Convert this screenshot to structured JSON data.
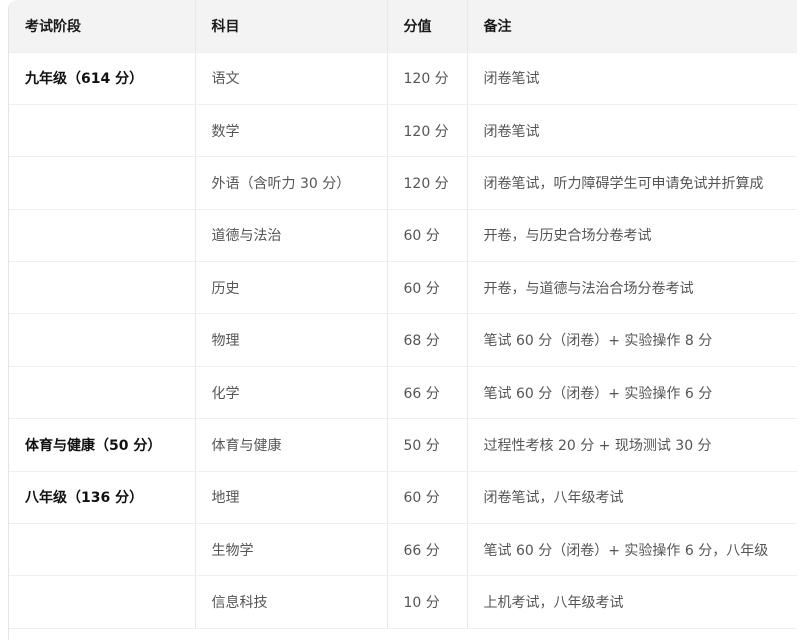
{
  "table": {
    "headers": [
      "考试阶段",
      "科目",
      "分值",
      "备注"
    ],
    "rows": [
      {
        "stage": "九年级（614 分）",
        "subject": "语文",
        "score": "120 分",
        "note": "闭卷笔试"
      },
      {
        "stage": "",
        "subject": "数学",
        "score": "120 分",
        "note": "闭卷笔试"
      },
      {
        "stage": "",
        "subject": "外语（含听力 30 分）",
        "score": "120 分",
        "note": "闭卷笔试，听力障碍学生可申请免试并折算成"
      },
      {
        "stage": "",
        "subject": "道德与法治",
        "score": "60 分",
        "note": "开卷，与历史合场分卷考试"
      },
      {
        "stage": "",
        "subject": "历史",
        "score": "60 分",
        "note": "开卷，与道德与法治合场分卷考试"
      },
      {
        "stage": "",
        "subject": "物理",
        "score": "68 分",
        "note": "笔试 60 分（闭卷）+ 实验操作 8 分"
      },
      {
        "stage": "",
        "subject": "化学",
        "score": "66 分",
        "note": "笔试 60 分（闭卷）+ 实验操作 6 分"
      },
      {
        "stage": "体育与健康（50 分）",
        "subject": "体育与健康",
        "score": "50 分",
        "note": "过程性考核 20 分 + 现场测试 30 分"
      },
      {
        "stage": "八年级（136 分）",
        "subject": "地理",
        "score": "60 分",
        "note": "闭卷笔试，八年级考试"
      },
      {
        "stage": "",
        "subject": "生物学",
        "score": "66 分",
        "note": "笔试 60 分（闭卷）+ 实验操作 6 分，八年级"
      },
      {
        "stage": "",
        "subject": "信息科技",
        "score": "10 分",
        "note": "上机考试，八年级考试"
      }
    ]
  }
}
